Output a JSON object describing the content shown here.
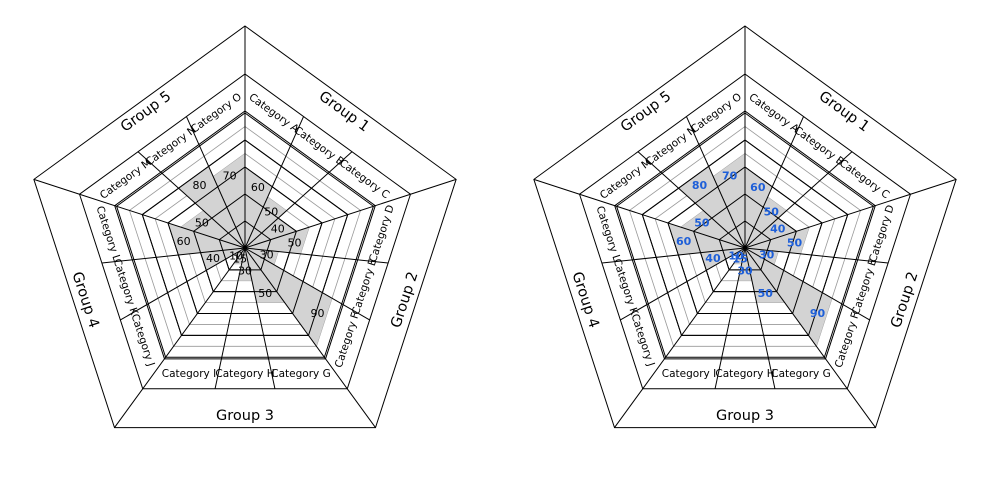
{
  "chart_data": [
    {
      "type": "radar",
      "title": "",
      "categories": [
        "Category A",
        "Category B",
        "Category C",
        "Category D",
        "Category E",
        "Category F",
        "Category G",
        "Category H",
        "Category I",
        "Category J",
        "Category K",
        "Category L",
        "Category M",
        "Category N",
        "Category O"
      ],
      "values": [
        60,
        50,
        40,
        50,
        30,
        90,
        50,
        30,
        15,
        10,
        40,
        60,
        50,
        80,
        70
      ],
      "value_labels": [
        "60",
        "50",
        "40",
        "50",
        "30",
        "90",
        "50",
        "30",
        "15",
        "10",
        "40",
        "60",
        "50",
        "80",
        "70"
      ],
      "groups": [
        "Group 1",
        "Group 2",
        "Group 3",
        "Group 4",
        "Group 5"
      ],
      "rmax": 100,
      "label_color": "#000000",
      "fill_color": "#d3d3d3"
    },
    {
      "type": "radar",
      "title": "",
      "categories": [
        "Category A",
        "Category B",
        "Category C",
        "Category D",
        "Category E",
        "Category F",
        "Category G",
        "Category H",
        "Category I",
        "Category J",
        "Category K",
        "Category L",
        "Category M",
        "Category N",
        "Category O"
      ],
      "values": [
        60,
        50,
        40,
        50,
        30,
        90,
        50,
        30,
        15,
        10,
        40,
        60,
        50,
        80,
        70
      ],
      "value_labels": [
        "60",
        "50",
        "40",
        "50",
        "30",
        "90",
        "50",
        "30",
        "15",
        "10",
        "40",
        "60",
        "50",
        "80",
        "70"
      ],
      "groups": [
        "Group 1",
        "Group 2",
        "Group 3",
        "Group 4",
        "Group 5"
      ],
      "rmax": 100,
      "label_color": "#1e5fd8",
      "fill_color": "#d3d3d3"
    }
  ]
}
